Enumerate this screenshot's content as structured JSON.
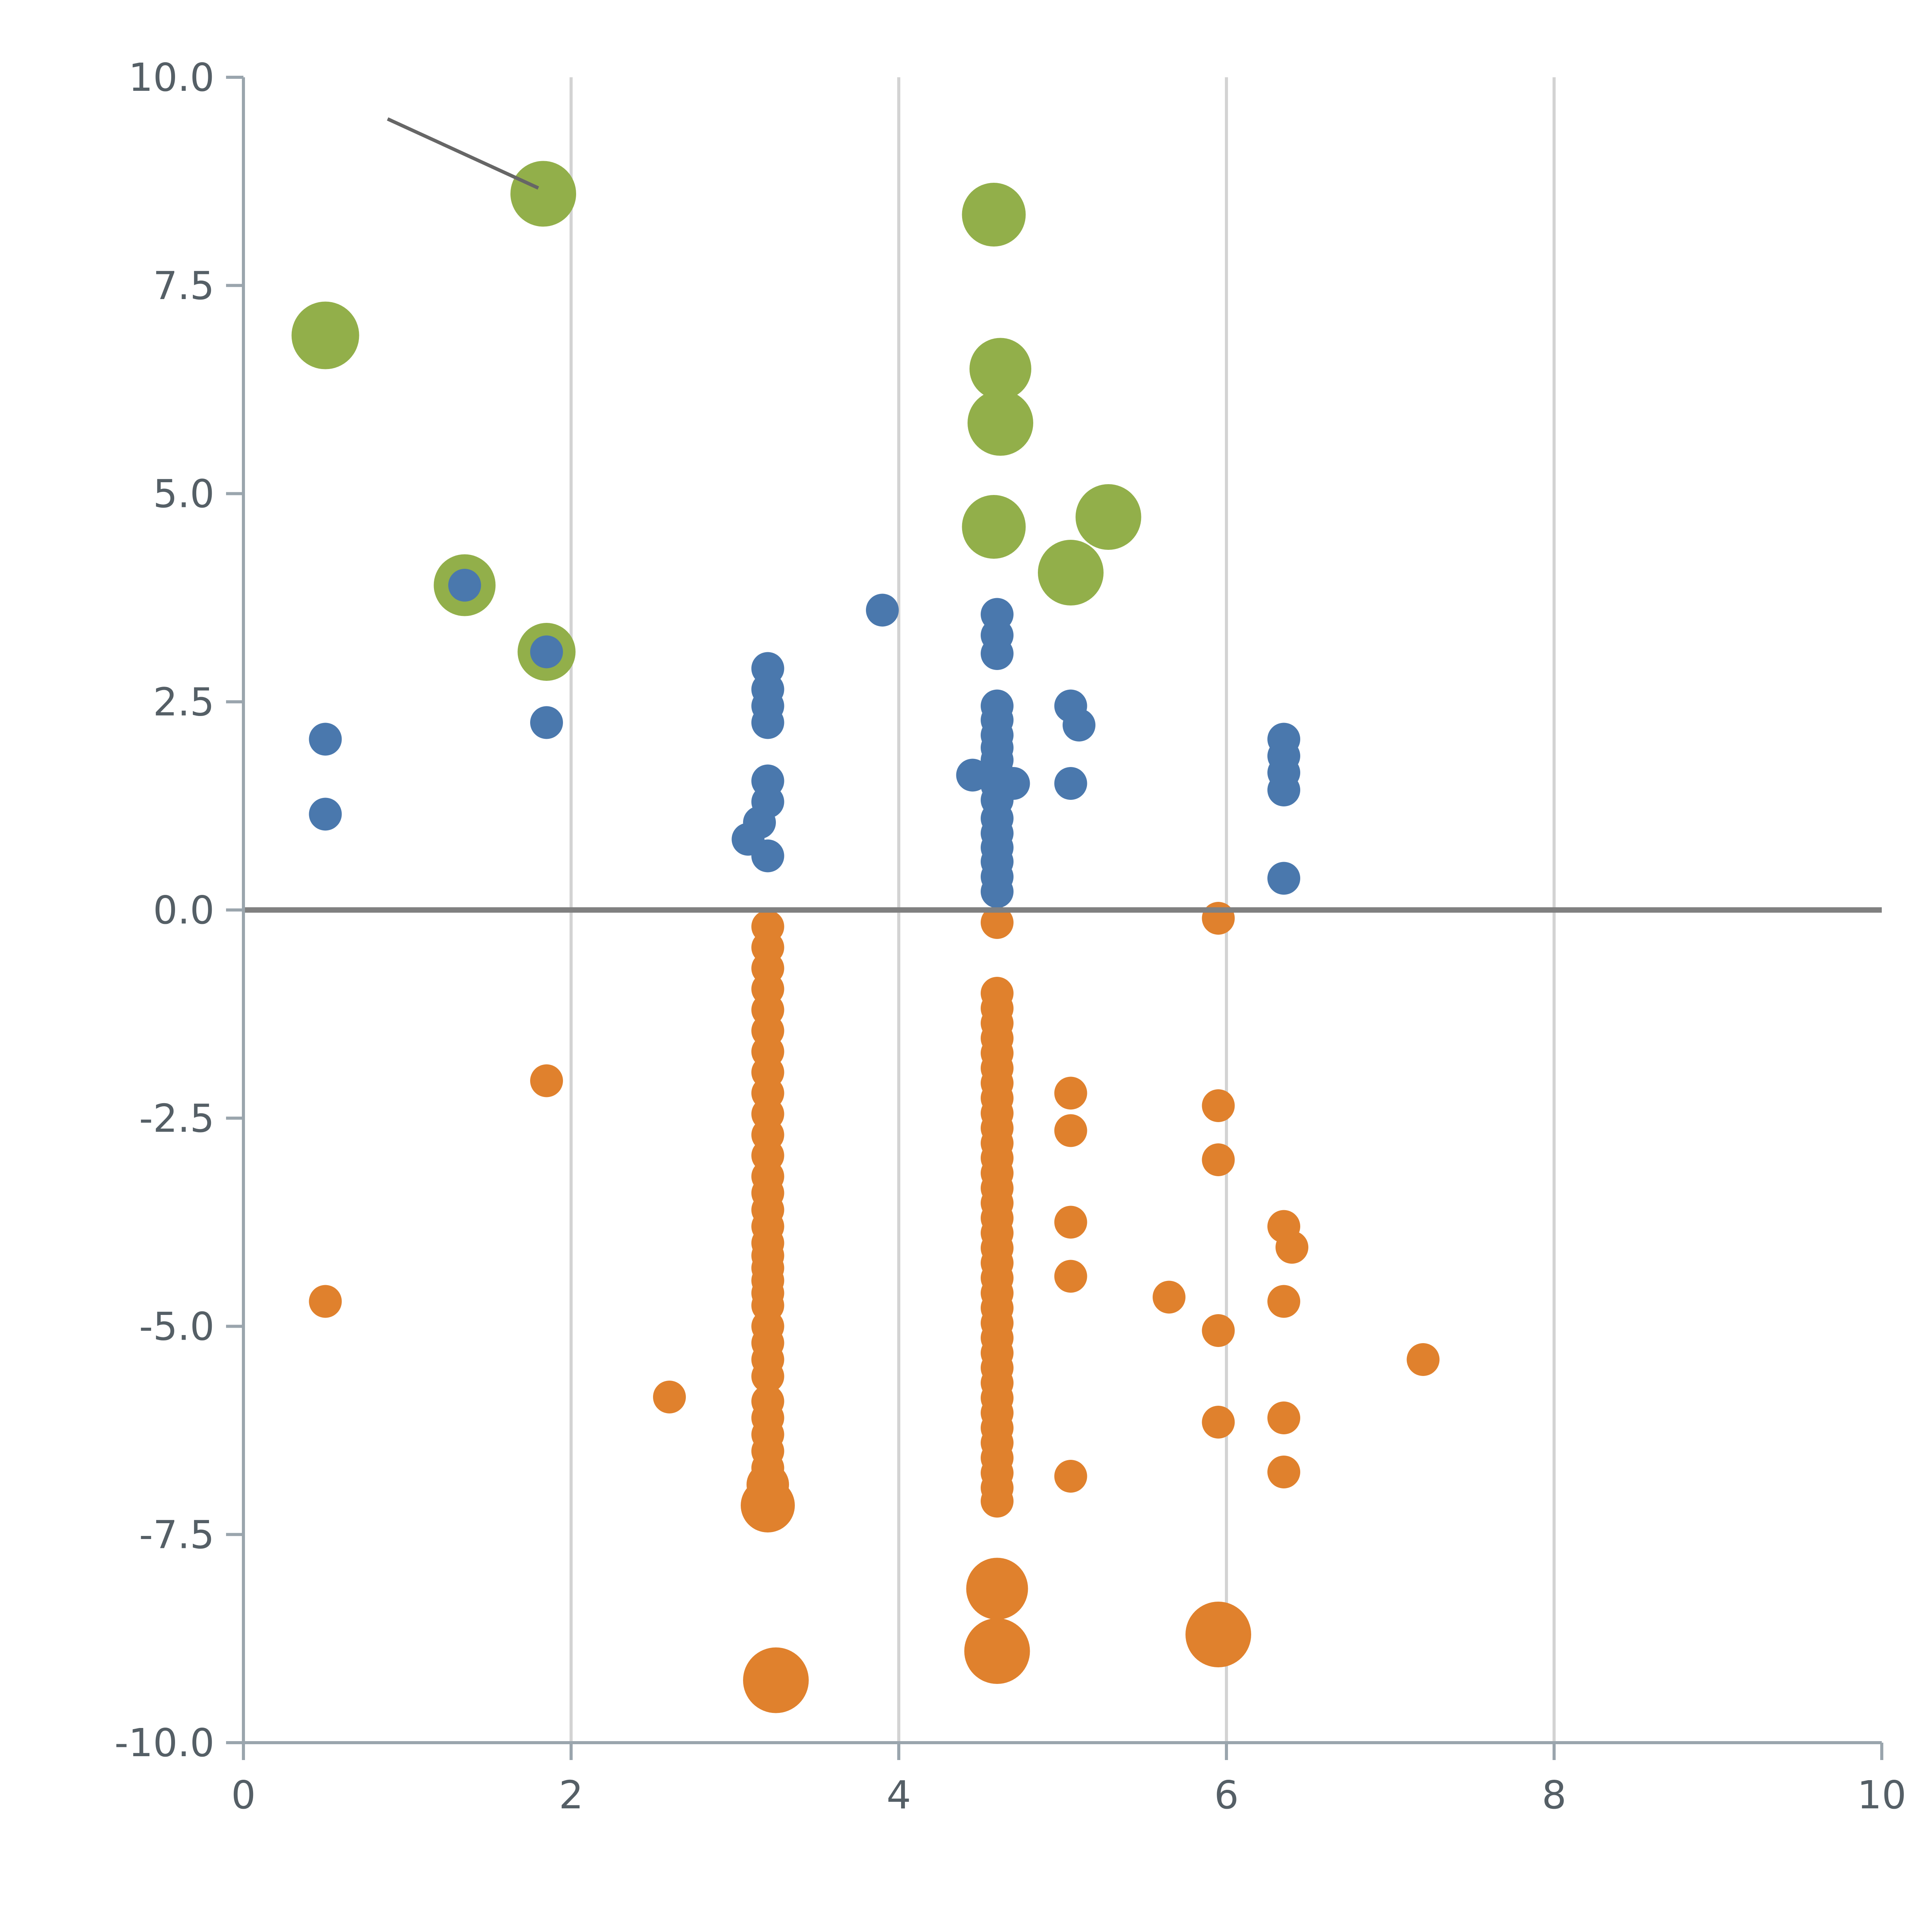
{
  "page": {
    "background": "#ffffff"
  },
  "chart_data": {
    "type": "scatter",
    "title": "",
    "xlabel": "",
    "ylabel": "",
    "xlim": [
      0,
      10
    ],
    "ylim": [
      -10,
      10
    ],
    "x_ticks": [
      0,
      2,
      4,
      6,
      8,
      10
    ],
    "x_tick_labels": [
      "0",
      "2",
      "4",
      "6",
      "8",
      "10"
    ],
    "y_ticks": [
      -10,
      -7.5,
      -5,
      -2.5,
      0,
      2.5,
      5,
      7.5,
      10
    ],
    "y_tick_labels": [
      "-10.0",
      "-7.5",
      "-5.0",
      "-2.5",
      "0.0",
      "2.5",
      "5.0",
      "7.5",
      "10.0"
    ],
    "grid": "vertical-only",
    "grid_x": [
      2,
      4,
      6,
      8
    ],
    "zero_line": true,
    "legend": "none",
    "annotation_line": {
      "x1": 0.88,
      "y1": 9.5,
      "x2": 1.8,
      "y2": 8.67
    },
    "colors": {
      "grid": "#d3d3d3",
      "zero_line": "#808080",
      "axis": "#9aa5ad",
      "tick_label": "#555f66",
      "annotation": "#666666"
    },
    "series": [
      {
        "name": "green",
        "color": "#92af4a",
        "default_r": 16.5,
        "points": [
          [
            1.83,
            8.6,
            17
          ],
          [
            0.5,
            6.9,
            17.5
          ],
          [
            4.58,
            8.35,
            16.5
          ],
          [
            4.62,
            6.5,
            16
          ],
          [
            4.62,
            5.85,
            17
          ],
          [
            4.58,
            4.6,
            16.5
          ],
          [
            5.28,
            4.72,
            17
          ],
          [
            5.05,
            4.05,
            17
          ],
          [
            1.35,
            3.9,
            16
          ],
          [
            1.85,
            3.1,
            15
          ]
        ]
      },
      {
        "name": "orange",
        "color": "#e0812d",
        "default_r": 8.5,
        "points": [
          [
            0.5,
            -4.7
          ],
          [
            1.85,
            -2.05
          ],
          [
            2.6,
            -5.85
          ],
          [
            3.2,
            -0.2
          ],
          [
            3.2,
            -0.45
          ],
          [
            3.2,
            -0.7
          ],
          [
            3.2,
            -0.95
          ],
          [
            3.2,
            -1.2
          ],
          [
            3.2,
            -1.45
          ],
          [
            3.2,
            -1.7
          ],
          [
            3.2,
            -1.95
          ],
          [
            3.2,
            -2.2
          ],
          [
            3.2,
            -2.45
          ],
          [
            3.2,
            -2.7
          ],
          [
            3.2,
            -2.95
          ],
          [
            3.2,
            -3.2
          ],
          [
            3.2,
            -3.4
          ],
          [
            3.2,
            -3.6
          ],
          [
            3.2,
            -3.8
          ],
          [
            3.2,
            -4.0
          ],
          [
            3.2,
            -4.15
          ],
          [
            3.2,
            -4.3
          ],
          [
            3.2,
            -4.45
          ],
          [
            3.2,
            -4.6
          ],
          [
            3.2,
            -4.75
          ],
          [
            3.2,
            -5.0
          ],
          [
            3.2,
            -5.2
          ],
          [
            3.2,
            -5.4
          ],
          [
            3.2,
            -5.6
          ],
          [
            3.2,
            -5.9
          ],
          [
            3.2,
            -6.1
          ],
          [
            3.2,
            -6.3
          ],
          [
            3.2,
            -6.5
          ],
          [
            3.2,
            -6.7
          ],
          [
            3.2,
            -6.9,
            11
          ],
          [
            3.2,
            -7.15,
            14
          ],
          [
            3.25,
            -9.25,
            17
          ],
          [
            4.6,
            -0.15
          ],
          [
            4.6,
            -1.0
          ],
          [
            4.6,
            -1.18
          ],
          [
            4.6,
            -1.36
          ],
          [
            4.6,
            -1.54
          ],
          [
            4.6,
            -1.72
          ],
          [
            4.6,
            -1.9
          ],
          [
            4.6,
            -2.08
          ],
          [
            4.6,
            -2.26
          ],
          [
            4.6,
            -2.44
          ],
          [
            4.6,
            -2.62
          ],
          [
            4.6,
            -2.8
          ],
          [
            4.6,
            -2.98
          ],
          [
            4.6,
            -3.16
          ],
          [
            4.6,
            -3.34
          ],
          [
            4.6,
            -3.52
          ],
          [
            4.6,
            -3.7
          ],
          [
            4.6,
            -3.88
          ],
          [
            4.6,
            -4.06
          ],
          [
            4.6,
            -4.24
          ],
          [
            4.6,
            -4.42
          ],
          [
            4.6,
            -4.6
          ],
          [
            4.6,
            -4.78
          ],
          [
            4.6,
            -4.96
          ],
          [
            4.6,
            -5.14
          ],
          [
            4.6,
            -5.32
          ],
          [
            4.6,
            -5.5
          ],
          [
            4.6,
            -5.68
          ],
          [
            4.6,
            -5.86
          ],
          [
            4.6,
            -6.04
          ],
          [
            4.6,
            -6.22
          ],
          [
            4.6,
            -6.4
          ],
          [
            4.6,
            -6.58
          ],
          [
            4.6,
            -6.76
          ],
          [
            4.6,
            -6.94
          ],
          [
            4.6,
            -7.1
          ],
          [
            4.6,
            -8.15,
            16
          ],
          [
            4.6,
            -8.9,
            17
          ],
          [
            5.05,
            -2.2
          ],
          [
            5.05,
            -2.65
          ],
          [
            5.05,
            -3.75
          ],
          [
            5.05,
            -4.4
          ],
          [
            5.05,
            -6.8
          ],
          [
            5.65,
            -4.65
          ],
          [
            5.95,
            -0.1
          ],
          [
            5.95,
            -2.35
          ],
          [
            5.95,
            -3.0
          ],
          [
            5.95,
            -5.05
          ],
          [
            5.95,
            -6.15
          ],
          [
            5.95,
            -8.7,
            17
          ],
          [
            6.35,
            -3.8
          ],
          [
            6.4,
            -4.05
          ],
          [
            6.35,
            -4.7
          ],
          [
            6.35,
            -6.1
          ],
          [
            6.35,
            -6.75
          ],
          [
            7.2,
            -5.4
          ]
        ]
      },
      {
        "name": "blue",
        "color": "#4a78ad",
        "default_r": 8.5,
        "points": [
          [
            0.5,
            2.05
          ],
          [
            0.5,
            1.15
          ],
          [
            1.35,
            3.9
          ],
          [
            1.85,
            3.1
          ],
          [
            1.85,
            2.25
          ],
          [
            3.2,
            2.9
          ],
          [
            3.2,
            2.65
          ],
          [
            3.2,
            2.45
          ],
          [
            3.2,
            2.25
          ],
          [
            3.2,
            1.55
          ],
          [
            3.2,
            1.3
          ],
          [
            3.15,
            1.05
          ],
          [
            3.08,
            0.85
          ],
          [
            3.2,
            0.65
          ],
          [
            3.9,
            3.6
          ],
          [
            4.6,
            3.55
          ],
          [
            4.6,
            3.3
          ],
          [
            4.6,
            3.08
          ],
          [
            4.6,
            2.45
          ],
          [
            4.6,
            2.28
          ],
          [
            4.6,
            2.1
          ],
          [
            4.6,
            1.95
          ],
          [
            4.6,
            1.8
          ],
          [
            4.6,
            1.65
          ],
          [
            4.6,
            1.5
          ],
          [
            4.6,
            1.32
          ],
          [
            4.45,
            1.62
          ],
          [
            4.7,
            1.52
          ],
          [
            4.6,
            1.1
          ],
          [
            4.6,
            0.92
          ],
          [
            4.6,
            0.75
          ],
          [
            4.6,
            0.58
          ],
          [
            4.6,
            0.4
          ],
          [
            4.6,
            0.22
          ],
          [
            5.05,
            2.45
          ],
          [
            5.1,
            2.22
          ],
          [
            5.05,
            1.52
          ],
          [
            6.35,
            2.05
          ],
          [
            6.35,
            1.85
          ],
          [
            6.35,
            1.65
          ],
          [
            6.35,
            1.44
          ],
          [
            6.35,
            0.38
          ]
        ]
      }
    ]
  }
}
